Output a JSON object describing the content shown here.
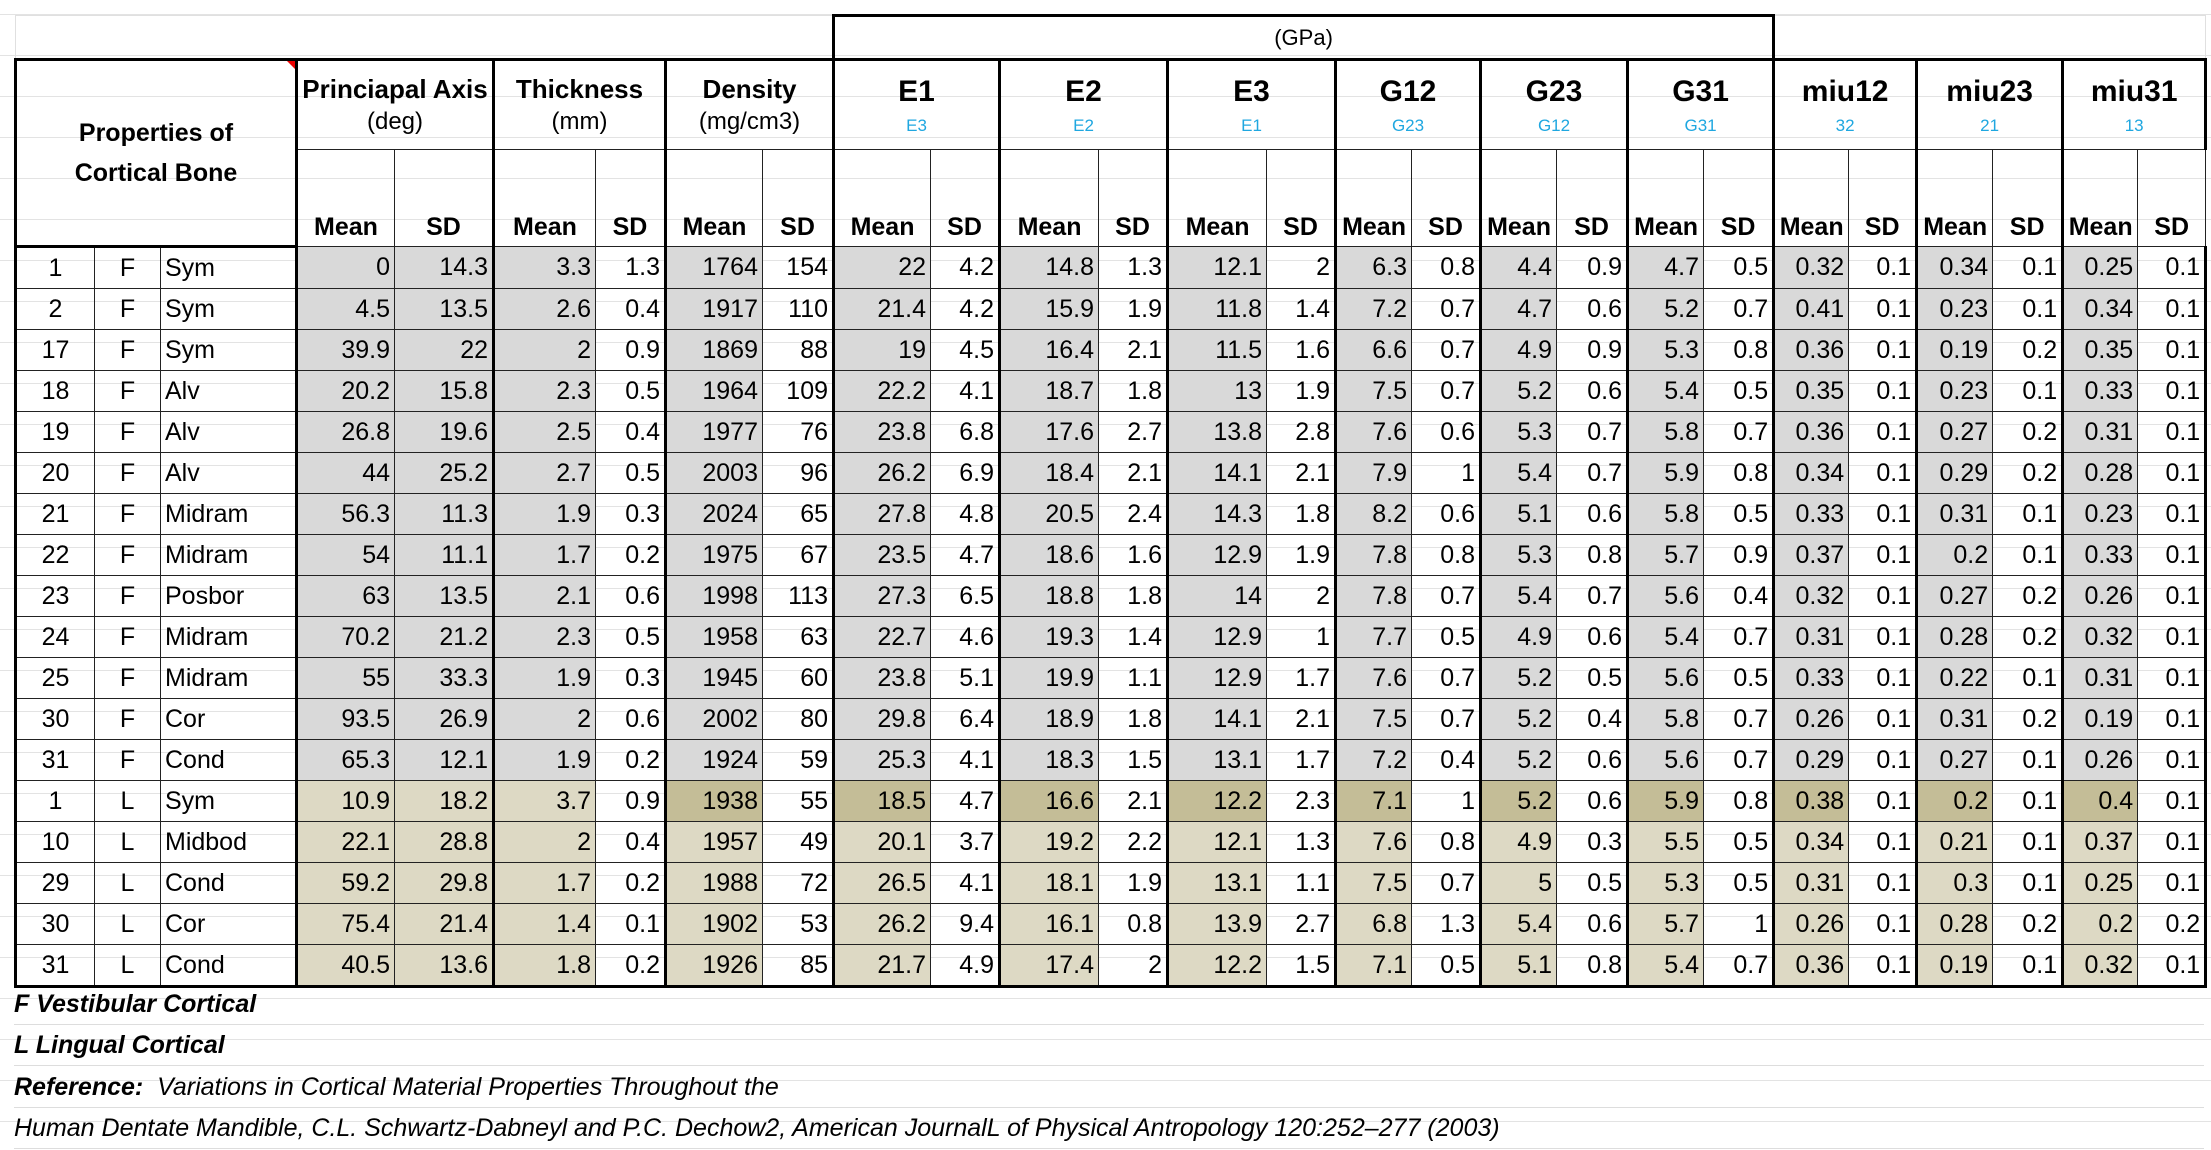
{
  "header": {
    "units_band": "(GPa)",
    "properties_label_line1": "Properties of",
    "properties_label_line2": "Cortical Bone",
    "mean_label": "Mean",
    "sd_label": "SD",
    "groups": [
      {
        "title": "Princiapal Axis",
        "sub": "(deg)",
        "sub_style": "unit"
      },
      {
        "title": "Thickness",
        "sub": "(mm)",
        "sub_style": "unit"
      },
      {
        "title": "Density",
        "sub": "(mg/cm3)",
        "sub_style": "unit"
      },
      {
        "title": "E1",
        "sub": "E3",
        "sub_style": "blue"
      },
      {
        "title": "E2",
        "sub": "E2",
        "sub_style": "blue"
      },
      {
        "title": "E3",
        "sub": "E1",
        "sub_style": "blue"
      },
      {
        "title": "G12",
        "sub": "G23",
        "sub_style": "blue"
      },
      {
        "title": "G23",
        "sub": "G12",
        "sub_style": "blue"
      },
      {
        "title": "G31",
        "sub": "G31",
        "sub_style": "blue"
      },
      {
        "title": "miu12",
        "sub": "32",
        "sub_style": "blue"
      },
      {
        "title": "miu23",
        "sub": "21",
        "sub_style": "blue"
      },
      {
        "title": "miu31",
        "sub": "13",
        "sub_style": "blue"
      }
    ]
  },
  "colors": {
    "f_shade": "#d9d9d9",
    "l_shade": "#ddd9c4",
    "l_highlight": "#c4bd97",
    "sub_label_blue": "#1fa7e0"
  },
  "rows": [
    {
      "id": "1",
      "side": "F",
      "region": "Sym",
      "values": [
        "0",
        "14.3",
        "3.3",
        "1.3",
        "1764",
        "154",
        "22",
        "4.2",
        "14.8",
        "1.3",
        "12.1",
        "2",
        "6.3",
        "0.8",
        "4.4",
        "0.9",
        "4.7",
        "0.5",
        "0.32",
        "0.1",
        "0.34",
        "0.1",
        "0.25",
        "0.1"
      ]
    },
    {
      "id": "2",
      "side": "F",
      "region": "Sym",
      "values": [
        "4.5",
        "13.5",
        "2.6",
        "0.4",
        "1917",
        "110",
        "21.4",
        "4.2",
        "15.9",
        "1.9",
        "11.8",
        "1.4",
        "7.2",
        "0.7",
        "4.7",
        "0.6",
        "5.2",
        "0.7",
        "0.41",
        "0.1",
        "0.23",
        "0.1",
        "0.34",
        "0.1"
      ]
    },
    {
      "id": "17",
      "side": "F",
      "region": "Sym",
      "values": [
        "39.9",
        "22",
        "2",
        "0.9",
        "1869",
        "88",
        "19",
        "4.5",
        "16.4",
        "2.1",
        "11.5",
        "1.6",
        "6.6",
        "0.7",
        "4.9",
        "0.9",
        "5.3",
        "0.8",
        "0.36",
        "0.1",
        "0.19",
        "0.2",
        "0.35",
        "0.1"
      ]
    },
    {
      "id": "18",
      "side": "F",
      "region": "Alv",
      "values": [
        "20.2",
        "15.8",
        "2.3",
        "0.5",
        "1964",
        "109",
        "22.2",
        "4.1",
        "18.7",
        "1.8",
        "13",
        "1.9",
        "7.5",
        "0.7",
        "5.2",
        "0.6",
        "5.4",
        "0.5",
        "0.35",
        "0.1",
        "0.23",
        "0.1",
        "0.33",
        "0.1"
      ]
    },
    {
      "id": "19",
      "side": "F",
      "region": "Alv",
      "values": [
        "26.8",
        "19.6",
        "2.5",
        "0.4",
        "1977",
        "76",
        "23.8",
        "6.8",
        "17.6",
        "2.7",
        "13.8",
        "2.8",
        "7.6",
        "0.6",
        "5.3",
        "0.7",
        "5.8",
        "0.7",
        "0.36",
        "0.1",
        "0.27",
        "0.2",
        "0.31",
        "0.1"
      ]
    },
    {
      "id": "20",
      "side": "F",
      "region": "Alv",
      "values": [
        "44",
        "25.2",
        "2.7",
        "0.5",
        "2003",
        "96",
        "26.2",
        "6.9",
        "18.4",
        "2.1",
        "14.1",
        "2.1",
        "7.9",
        "1",
        "5.4",
        "0.7",
        "5.9",
        "0.8",
        "0.34",
        "0.1",
        "0.29",
        "0.2",
        "0.28",
        "0.1"
      ]
    },
    {
      "id": "21",
      "side": "F",
      "region": "Midram",
      "values": [
        "56.3",
        "11.3",
        "1.9",
        "0.3",
        "2024",
        "65",
        "27.8",
        "4.8",
        "20.5",
        "2.4",
        "14.3",
        "1.8",
        "8.2",
        "0.6",
        "5.1",
        "0.6",
        "5.8",
        "0.5",
        "0.33",
        "0.1",
        "0.31",
        "0.1",
        "0.23",
        "0.1"
      ]
    },
    {
      "id": "22",
      "side": "F",
      "region": "Midram",
      "values": [
        "54",
        "11.1",
        "1.7",
        "0.2",
        "1975",
        "67",
        "23.5",
        "4.7",
        "18.6",
        "1.6",
        "12.9",
        "1.9",
        "7.8",
        "0.8",
        "5.3",
        "0.8",
        "5.7",
        "0.9",
        "0.37",
        "0.1",
        "0.2",
        "0.1",
        "0.33",
        "0.1"
      ]
    },
    {
      "id": "23",
      "side": "F",
      "region": "Posbor",
      "values": [
        "63",
        "13.5",
        "2.1",
        "0.6",
        "1998",
        "113",
        "27.3",
        "6.5",
        "18.8",
        "1.8",
        "14",
        "2",
        "7.8",
        "0.7",
        "5.4",
        "0.7",
        "5.6",
        "0.4",
        "0.32",
        "0.1",
        "0.27",
        "0.2",
        "0.26",
        "0.1"
      ]
    },
    {
      "id": "24",
      "side": "F",
      "region": "Midram",
      "values": [
        "70.2",
        "21.2",
        "2.3",
        "0.5",
        "1958",
        "63",
        "22.7",
        "4.6",
        "19.3",
        "1.4",
        "12.9",
        "1",
        "7.7",
        "0.5",
        "4.9",
        "0.6",
        "5.4",
        "0.7",
        "0.31",
        "0.1",
        "0.28",
        "0.2",
        "0.32",
        "0.1"
      ]
    },
    {
      "id": "25",
      "side": "F",
      "region": "Midram",
      "values": [
        "55",
        "33.3",
        "1.9",
        "0.3",
        "1945",
        "60",
        "23.8",
        "5.1",
        "19.9",
        "1.1",
        "12.9",
        "1.7",
        "7.6",
        "0.7",
        "5.2",
        "0.5",
        "5.6",
        "0.5",
        "0.33",
        "0.1",
        "0.22",
        "0.1",
        "0.31",
        "0.1"
      ]
    },
    {
      "id": "30",
      "side": "F",
      "region": "Cor",
      "values": [
        "93.5",
        "26.9",
        "2",
        "0.6",
        "2002",
        "80",
        "29.8",
        "6.4",
        "18.9",
        "1.8",
        "14.1",
        "2.1",
        "7.5",
        "0.7",
        "5.2",
        "0.4",
        "5.8",
        "0.7",
        "0.26",
        "0.1",
        "0.31",
        "0.2",
        "0.19",
        "0.1"
      ]
    },
    {
      "id": "31",
      "side": "F",
      "region": "Cond",
      "values": [
        "65.3",
        "12.1",
        "1.9",
        "0.2",
        "1924",
        "59",
        "25.3",
        "4.1",
        "18.3",
        "1.5",
        "13.1",
        "1.7",
        "7.2",
        "0.4",
        "5.2",
        "0.6",
        "5.6",
        "0.7",
        "0.29",
        "0.1",
        "0.27",
        "0.1",
        "0.26",
        "0.1"
      ]
    },
    {
      "id": "1",
      "side": "L",
      "region": "Sym",
      "values": [
        "10.9",
        "18.2",
        "3.7",
        "0.9",
        "1938",
        "55",
        "18.5",
        "4.7",
        "16.6",
        "2.1",
        "12.2",
        "2.3",
        "7.1",
        "1",
        "5.2",
        "0.6",
        "5.9",
        "0.8",
        "0.38",
        "0.1",
        "0.2",
        "0.1",
        "0.4",
        "0.1"
      ]
    },
    {
      "id": "10",
      "side": "L",
      "region": "Midbod",
      "values": [
        "22.1",
        "28.8",
        "2",
        "0.4",
        "1957",
        "49",
        "20.1",
        "3.7",
        "19.2",
        "2.2",
        "12.1",
        "1.3",
        "7.6",
        "0.8",
        "4.9",
        "0.3",
        "5.5",
        "0.5",
        "0.34",
        "0.1",
        "0.21",
        "0.1",
        "0.37",
        "0.1"
      ]
    },
    {
      "id": "29",
      "side": "L",
      "region": "Cond",
      "values": [
        "59.2",
        "29.8",
        "1.7",
        "0.2",
        "1988",
        "72",
        "26.5",
        "4.1",
        "18.1",
        "1.9",
        "13.1",
        "1.1",
        "7.5",
        "0.7",
        "5",
        "0.5",
        "5.3",
        "0.5",
        "0.31",
        "0.1",
        "0.3",
        "0.1",
        "0.25",
        "0.1"
      ]
    },
    {
      "id": "30",
      "side": "L",
      "region": "Cor",
      "values": [
        "75.4",
        "21.4",
        "1.4",
        "0.1",
        "1902",
        "53",
        "26.2",
        "9.4",
        "16.1",
        "0.8",
        "13.9",
        "2.7",
        "6.8",
        "1.3",
        "5.4",
        "0.6",
        "5.7",
        "1",
        "0.26",
        "0.1",
        "0.28",
        "0.2",
        "0.2",
        "0.2"
      ]
    },
    {
      "id": "31",
      "side": "L",
      "region": "Cond",
      "values": [
        "40.5",
        "13.6",
        "1.8",
        "0.2",
        "1926",
        "85",
        "21.7",
        "4.9",
        "17.4",
        "2",
        "12.2",
        "1.5",
        "7.1",
        "0.5",
        "5.1",
        "0.8",
        "5.4",
        "0.7",
        "0.36",
        "0.1",
        "0.19",
        "0.1",
        "0.32",
        "0.1"
      ]
    }
  ],
  "footer": {
    "legend_f": "F  Vestibular Cortical",
    "legend_l": "L  Lingual Cortical",
    "reference_label": "Reference:",
    "reference_line1": "  Variations in Cortical Material Properties Throughout the",
    "reference_line2": "Human Dentate Mandible, C.L. Schwartz-Dabneyl and P.C. Dechow2, American JournalL of Physical Antropology 120:252–277 (2003)"
  }
}
